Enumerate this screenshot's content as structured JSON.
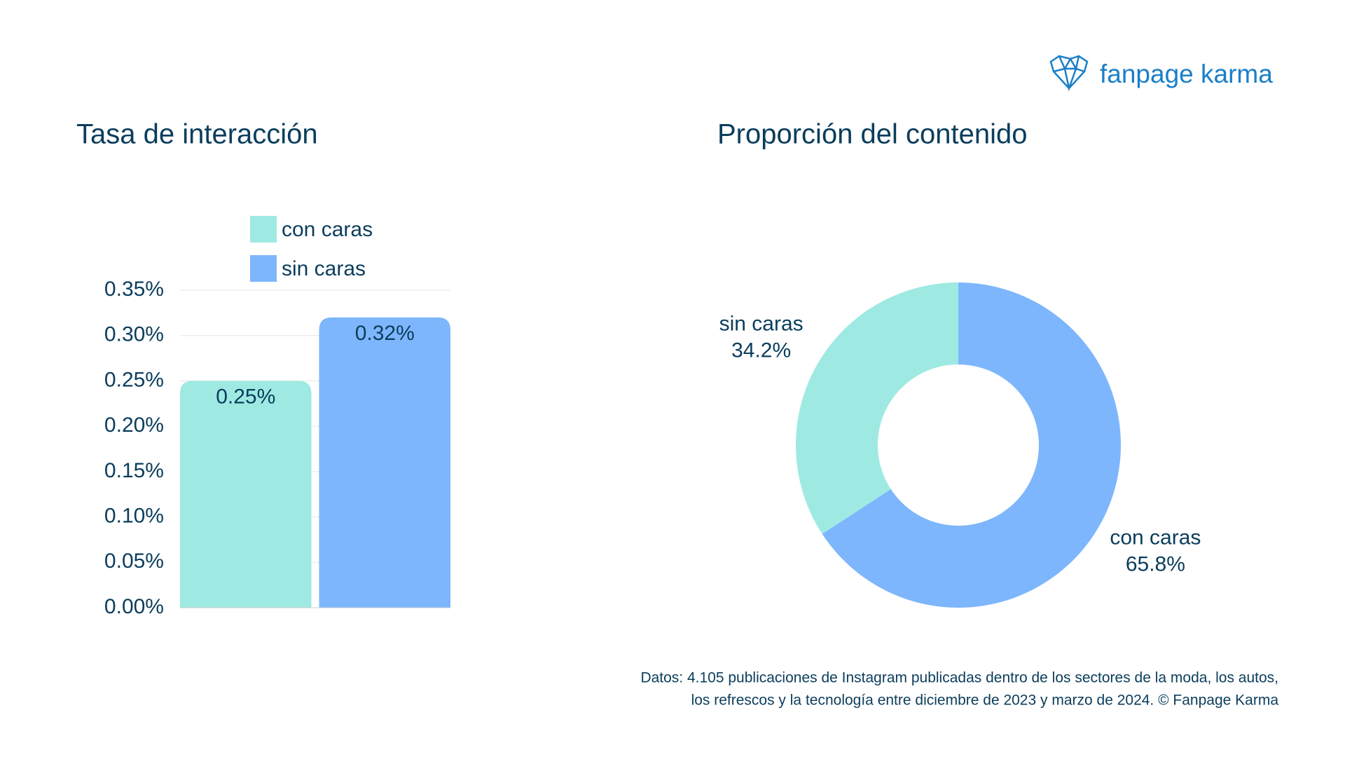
{
  "logo": {
    "text": "fanpage karma"
  },
  "footnote": [
    "Datos: 4.105 publicaciones de Instagram publicadas dentro de los sectores de la moda, los autos,",
    "los refrescos y la tecnología entre diciembre de 2023 y marzo de 2024. © Fanpage Karma"
  ],
  "chart_data": [
    {
      "type": "bar",
      "title": "Tasa de interacción",
      "series": [
        {
          "name": "con caras",
          "color": "#9eeae2",
          "values": [
            0.25
          ],
          "value_labels": [
            "0.25%"
          ]
        },
        {
          "name": "sin caras",
          "color": "#7db6fc",
          "values": [
            0.32
          ],
          "value_labels": [
            "0.32%"
          ]
        }
      ],
      "ylim": [
        0,
        0.35
      ],
      "yticks": [
        {
          "value": 0,
          "label": "0.00%"
        },
        {
          "value": 0.05,
          "label": "0.05%"
        },
        {
          "value": 0.1,
          "label": "0.10%"
        },
        {
          "value": 0.15,
          "label": "0.15%"
        },
        {
          "value": 0.2,
          "label": "0.20%"
        },
        {
          "value": 0.25,
          "label": "0.25%"
        },
        {
          "value": 0.3,
          "label": "0.30%"
        },
        {
          "value": 0.35,
          "label": "0.35%"
        }
      ],
      "grid": true
    },
    {
      "type": "donut",
      "title": "Proporción del contenido",
      "categories": [
        "con caras",
        "sin caras"
      ],
      "values": [
        65.8,
        34.2
      ],
      "value_labels": [
        "65.8%",
        "34.2%"
      ],
      "colors": [
        "#7db6fc",
        "#9eeae2"
      ]
    }
  ]
}
